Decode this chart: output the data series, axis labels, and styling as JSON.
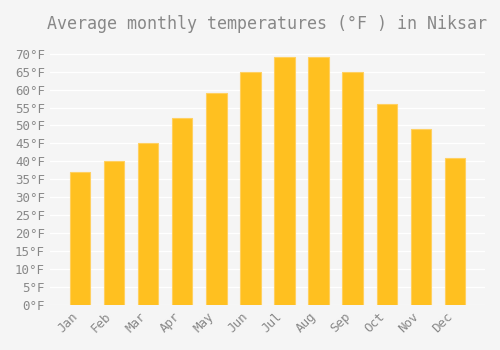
{
  "title": "Average monthly temperatures (°F ) in Niksar",
  "months": [
    "Jan",
    "Feb",
    "Mar",
    "Apr",
    "May",
    "Jun",
    "Jul",
    "Aug",
    "Sep",
    "Oct",
    "Nov",
    "Dec"
  ],
  "values": [
    37,
    40,
    45,
    52,
    59,
    65,
    69,
    69,
    65,
    56,
    49,
    41
  ],
  "bar_color": "#FFC020",
  "bar_edge_color": "#FFD060",
  "background_color": "#F5F5F5",
  "grid_color": "#FFFFFF",
  "text_color": "#888888",
  "ylim": [
    0,
    73
  ],
  "yticks": [
    0,
    5,
    10,
    15,
    20,
    25,
    30,
    35,
    40,
    45,
    50,
    55,
    60,
    65,
    70
  ],
  "title_fontsize": 12,
  "tick_fontsize": 9
}
